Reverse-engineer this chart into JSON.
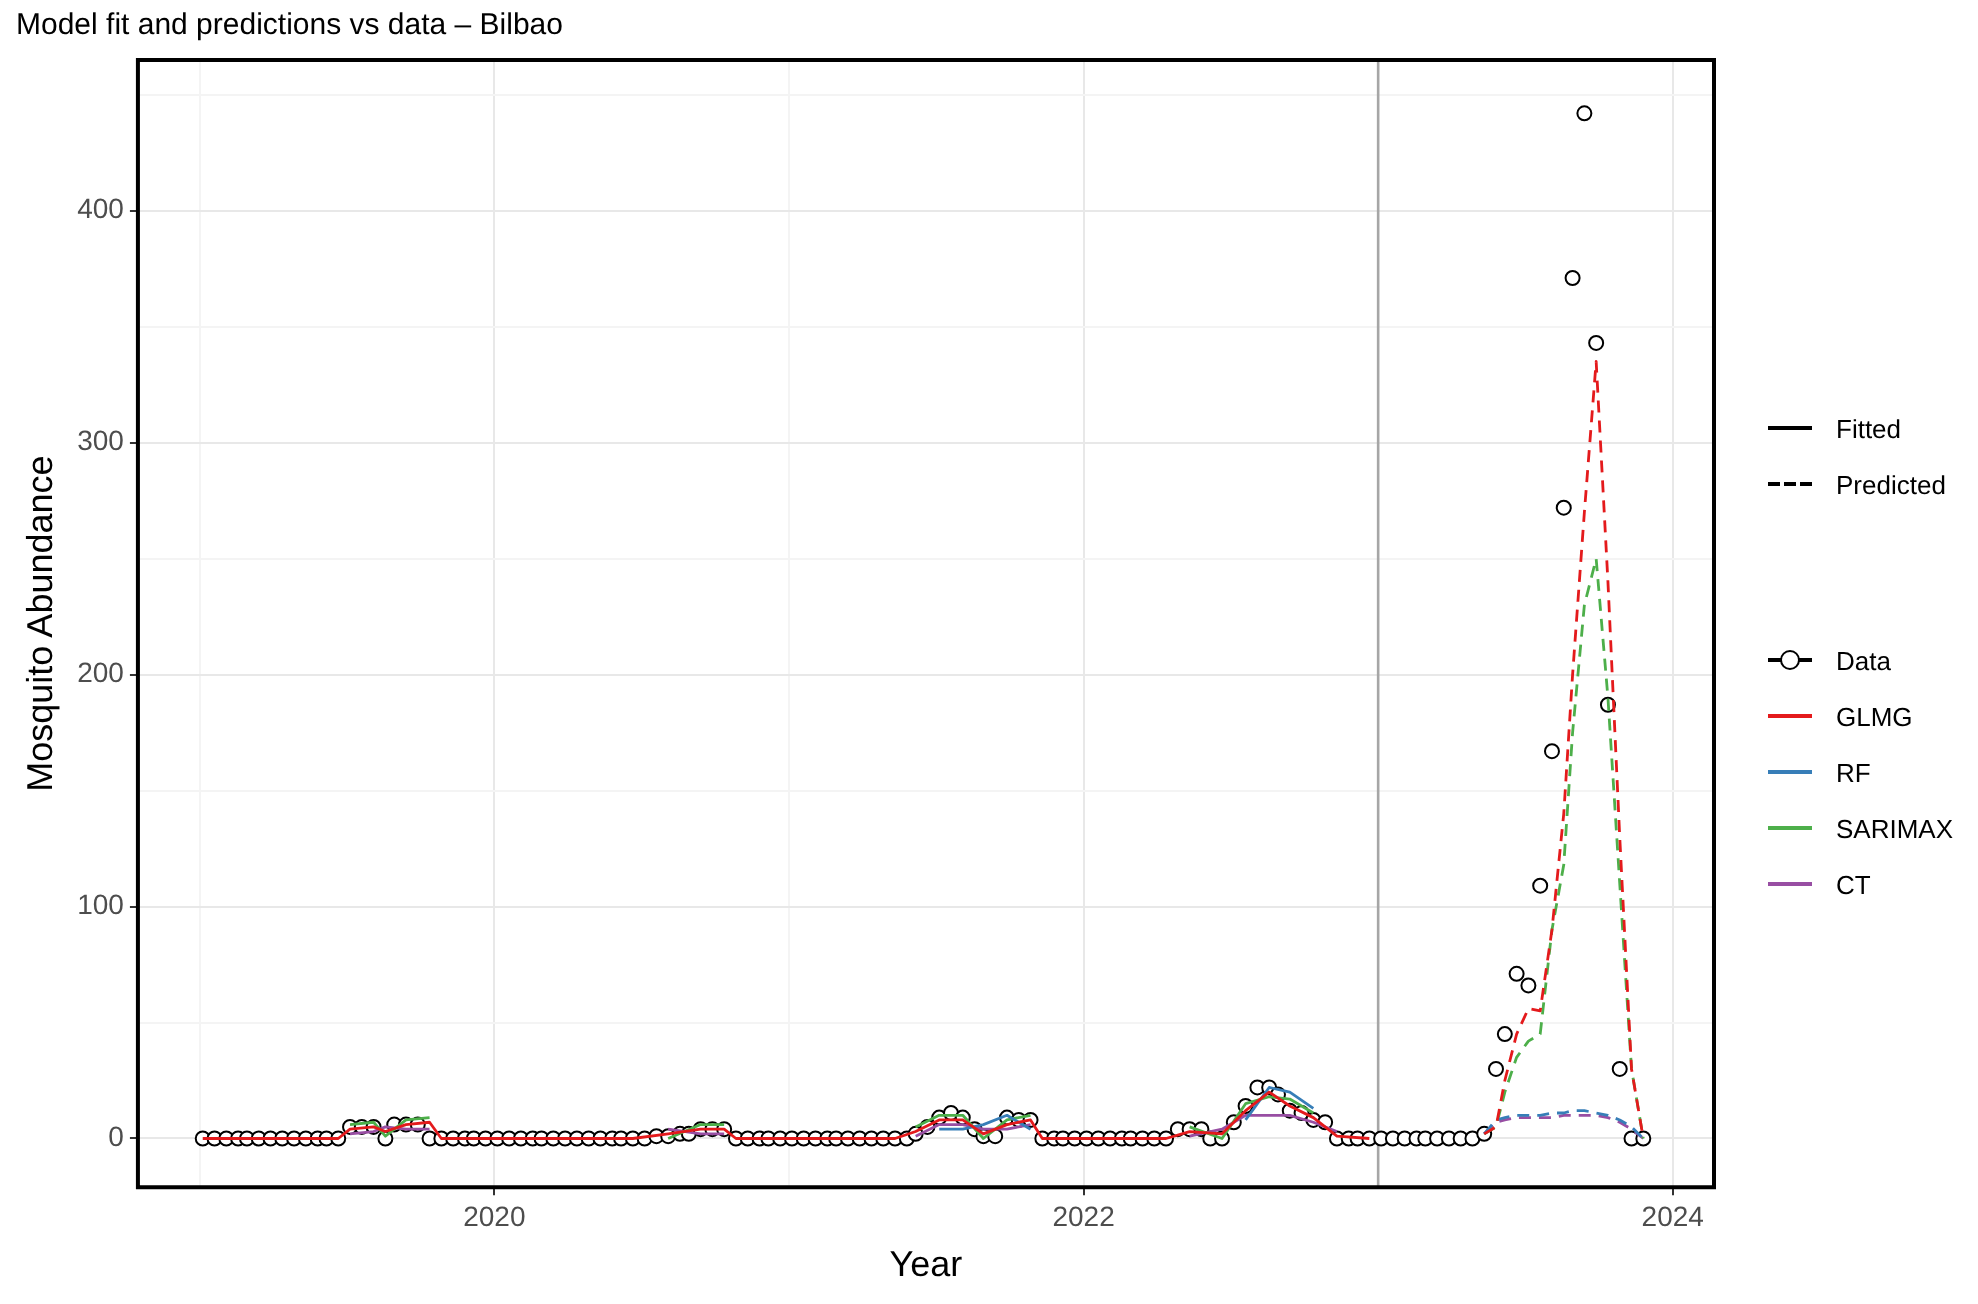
{
  "chart_data": {
    "type": "scatter",
    "title": "Model fit and predictions vs data – Bilbao",
    "xlabel": "Year",
    "ylabel": "Mosquito Abundance",
    "xlim": [
      2018.79,
      2024.14
    ],
    "xticks": [
      {
        "value": 2019,
        "label": null
      },
      2020,
      {
        "value": 2021,
        "label": null
      },
      2022,
      {
        "value": 2023,
        "label": null
      },
      2024
    ],
    "ylim": [
      -21,
      465
    ],
    "yticks": [
      0,
      {
        "value": 50,
        "label": null
      },
      100,
      {
        "value": 150,
        "label": null
      },
      200,
      {
        "value": 250,
        "label": null
      },
      300,
      {
        "value": 350,
        "label": null
      },
      400,
      {
        "value": 450,
        "label": null
      }
    ],
    "grid": true,
    "legend": "right",
    "annotations": [
      "Fitted",
      "Predicted"
    ],
    "ref_lines": [
      {
        "axis": "x",
        "value": 2023,
        "color": "#a6a6a6"
      }
    ],
    "series": [
      {
        "name": "Data",
        "marker": "circle",
        "color": "#000000",
        "x": [
          2019.01,
          2019.05,
          2019.09,
          2019.13,
          2019.16,
          2019.2,
          2019.24,
          2019.28,
          2019.32,
          2019.36,
          2019.4,
          2019.43,
          2019.47,
          2019.51,
          2019.55,
          2019.59,
          2019.63,
          2019.66,
          2019.7,
          2019.74,
          2019.78,
          2019.82,
          2019.86,
          2019.9,
          2019.93,
          2019.97,
          2020.01,
          2020.05,
          2020.09,
          2020.13,
          2020.16,
          2020.2,
          2020.24,
          2020.28,
          2020.32,
          2020.36,
          2020.4,
          2020.43,
          2020.47,
          2020.51,
          2020.55,
          2020.59,
          2020.63,
          2020.66,
          2020.7,
          2020.74,
          2020.78,
          2020.82,
          2020.86,
          2020.9,
          2020.93,
          2020.97,
          2021.01,
          2021.05,
          2021.09,
          2021.13,
          2021.16,
          2021.2,
          2021.24,
          2021.28,
          2021.32,
          2021.36,
          2021.4,
          2021.43,
          2021.47,
          2021.51,
          2021.55,
          2021.59,
          2021.63,
          2021.66,
          2021.7,
          2021.74,
          2021.78,
          2021.82,
          2021.86,
          2021.9,
          2021.93,
          2021.97,
          2022.01,
          2022.05,
          2022.09,
          2022.13,
          2022.16,
          2022.2,
          2022.24,
          2022.28,
          2022.32,
          2022.36,
          2022.4,
          2022.43,
          2022.47,
          2022.51,
          2022.55,
          2022.59,
          2022.63,
          2022.66,
          2022.7,
          2022.74,
          2022.78,
          2022.82,
          2022.86,
          2022.9,
          2022.93,
          2022.97,
          2023.01,
          2023.05,
          2023.09,
          2023.13,
          2023.16,
          2023.2,
          2023.24,
          2023.28,
          2023.32,
          2023.36,
          2023.4,
          2023.43,
          2023.47,
          2023.51,
          2023.55,
          2023.59,
          2023.63,
          2023.66,
          2023.7,
          2023.74,
          2023.78,
          2023.82,
          2023.86,
          2023.9
        ],
        "values": [
          0,
          0,
          0,
          0,
          0,
          0,
          0,
          0,
          0,
          0,
          0,
          0,
          0,
          5,
          5,
          5,
          0,
          6,
          6,
          6,
          0,
          0,
          0,
          0,
          0,
          0,
          0,
          0,
          0,
          0,
          0,
          0,
          0,
          0,
          0,
          0,
          0,
          0,
          0,
          0,
          1,
          1,
          2,
          2,
          4,
          4,
          4,
          0,
          0,
          0,
          0,
          0,
          0,
          0,
          0,
          0,
          0,
          0,
          0,
          0,
          0,
          0,
          0,
          2,
          5,
          9,
          11,
          9,
          4,
          1,
          1,
          9,
          8,
          8,
          0,
          0,
          0,
          0,
          0,
          0,
          0,
          0,
          0,
          0,
          0,
          0,
          4,
          4,
          4,
          0,
          0,
          7,
          14,
          22,
          22,
          19,
          12,
          11,
          8,
          7,
          0,
          0,
          0,
          0,
          0,
          0,
          0,
          0,
          0,
          0,
          0,
          0,
          0,
          2,
          30,
          45,
          71,
          66,
          109,
          167,
          272,
          371,
          442,
          343,
          187,
          30,
          0,
          0
        ]
      },
      {
        "name": "GLMG",
        "type": "line",
        "line_style": "solid",
        "color": "#e41a1c",
        "x": [
          2019.01,
          2019.47,
          2019.51,
          2019.59,
          2019.63,
          2019.7,
          2019.78,
          2019.82,
          2020.47,
          2020.59,
          2020.7,
          2020.78,
          2020.82,
          2021.36,
          2021.43,
          2021.51,
          2021.59,
          2021.66,
          2021.74,
          2021.82,
          2021.86,
          2022.28,
          2022.36,
          2022.47,
          2022.55,
          2022.63,
          2022.7,
          2022.78,
          2022.86,
          2022.97
        ],
        "values": [
          0,
          0,
          4,
          5,
          3,
          6,
          7,
          0,
          0,
          2,
          4,
          4,
          0,
          0,
          3,
          8,
          8,
          2,
          6,
          8,
          0,
          0,
          3,
          2,
          12,
          20,
          14,
          9,
          1,
          0
        ]
      },
      {
        "name": "RF",
        "type": "line",
        "line_style": "solid",
        "color": "#377eb8",
        "x": [
          2021.51,
          2021.59,
          2021.66,
          2021.74,
          2021.82
        ],
        "values": [
          4,
          4,
          6,
          10,
          4
        ]
      },
      {
        "type": "line",
        "line_style": "solid",
        "color": "#377eb8",
        "x": [
          2022.55,
          2022.63,
          2022.7,
          2022.78
        ],
        "values": [
          8,
          22,
          20,
          13
        ]
      },
      {
        "name": "SARIMAX",
        "type": "line",
        "line_style": "solid",
        "color": "#4daf4a",
        "x": [
          2019.51,
          2019.59,
          2019.63,
          2019.7,
          2019.78
        ],
        "values": [
          6,
          7,
          1,
          8,
          9
        ]
      },
      {
        "type": "line",
        "line_style": "solid",
        "color": "#4daf4a",
        "x": [
          2020.59,
          2020.7,
          2020.78
        ],
        "values": [
          0,
          6,
          6
        ]
      },
      {
        "type": "line",
        "line_style": "solid",
        "color": "#4daf4a",
        "x": [
          2021.43,
          2021.51,
          2021.59,
          2021.66,
          2021.74,
          2021.82
        ],
        "values": [
          5,
          10,
          10,
          0,
          8,
          10
        ]
      },
      {
        "type": "line",
        "line_style": "solid",
        "color": "#4daf4a",
        "x": [
          2022.36,
          2022.47,
          2022.55,
          2022.63,
          2022.7,
          2022.78
        ],
        "values": [
          5,
          0,
          15,
          18,
          17,
          11
        ]
      },
      {
        "name": "CT",
        "type": "line",
        "line_style": "solid",
        "color": "#984ea3",
        "x": [
          2019.51,
          2019.59,
          2019.63,
          2019.7,
          2019.78
        ],
        "values": [
          2,
          3,
          5,
          4,
          4
        ]
      },
      {
        "type": "line",
        "line_style": "solid",
        "color": "#984ea3",
        "x": [
          2020.59,
          2020.7,
          2020.78
        ],
        "values": [
          4,
          2,
          2
        ]
      },
      {
        "type": "line",
        "line_style": "solid",
        "color": "#984ea3",
        "x": [
          2021.43,
          2021.51,
          2021.59,
          2021.66,
          2021.74,
          2021.82
        ],
        "values": [
          1,
          6,
          6,
          4,
          4,
          6
        ]
      },
      {
        "type": "line",
        "line_style": "solid",
        "color": "#984ea3",
        "x": [
          2022.36,
          2022.47,
          2022.55,
          2022.63,
          2022.7,
          2022.78,
          2022.86
        ],
        "values": [
          1,
          4,
          10,
          10,
          10,
          7,
          3
        ]
      },
      {
        "type": "line",
        "line_style": "dashed",
        "color": "#e41a1c",
        "x": [
          2023.36,
          2023.4,
          2023.43,
          2023.47,
          2023.51,
          2023.55,
          2023.59,
          2023.63,
          2023.66,
          2023.7,
          2023.74,
          2023.78,
          2023.82,
          2023.86,
          2023.9
        ],
        "values": [
          2,
          5,
          25,
          45,
          56,
          55,
          90,
          140,
          200,
          270,
          335,
          240,
          130,
          30,
          0
        ]
      },
      {
        "type": "line",
        "line_style": "dashed",
        "color": "#377eb8",
        "x": [
          2023.36,
          2023.4,
          2023.43,
          2023.47,
          2023.51,
          2023.55,
          2023.59,
          2023.63,
          2023.66,
          2023.7,
          2023.74,
          2023.78,
          2023.82,
          2023.86,
          2023.9
        ],
        "values": [
          2,
          8,
          9,
          10,
          10,
          10,
          11,
          11,
          12,
          12,
          11,
          10,
          8,
          5,
          0
        ]
      },
      {
        "type": "line",
        "line_style": "dashed",
        "color": "#4daf4a",
        "x": [
          2023.36,
          2023.4,
          2023.43,
          2023.47,
          2023.51,
          2023.55,
          2023.59,
          2023.63,
          2023.66,
          2023.7,
          2023.74,
          2023.78,
          2023.82,
          2023.86,
          2023.9
        ],
        "values": [
          2,
          5,
          20,
          35,
          42,
          45,
          90,
          118,
          175,
          230,
          250,
          190,
          110,
          30,
          0
        ]
      },
      {
        "type": "line",
        "line_style": "dashed",
        "color": "#984ea3",
        "x": [
          2023.36,
          2023.4,
          2023.43,
          2023.47,
          2023.51,
          2023.55,
          2023.59,
          2023.63,
          2023.66,
          2023.7,
          2023.74,
          2023.78,
          2023.82,
          2023.86,
          2023.9
        ],
        "values": [
          2,
          7,
          8,
          9,
          9,
          9,
          9,
          10,
          10,
          10,
          10,
          9,
          7,
          4,
          0
        ]
      }
    ]
  }
}
